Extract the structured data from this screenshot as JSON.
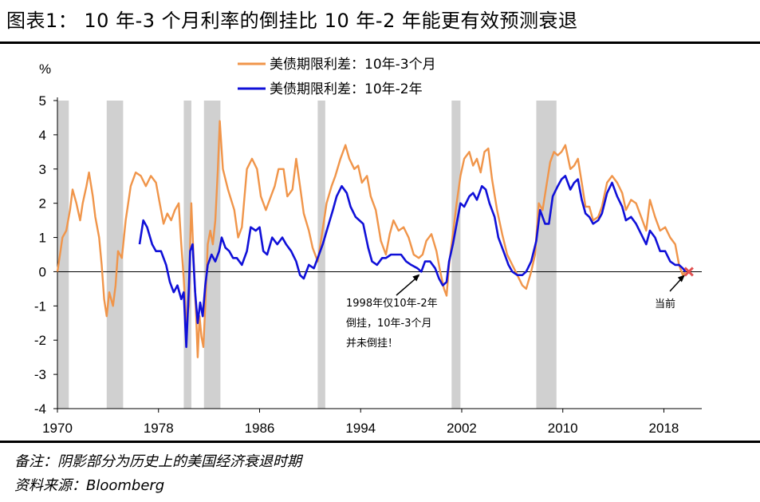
{
  "figure": {
    "title": "图表1： 10 年-3 个月利率的倒挂比 10 年-2 年能更有效预测衰退",
    "note": "备注：阴影部分为历史上的美国经济衰退时期",
    "source": "资料来源：Bloomberg"
  },
  "colors": {
    "series_10y3m": "#F0954A",
    "series_10y2y": "#1010D8",
    "recession": "#D0D0D0",
    "current_marker": "#E05050"
  },
  "chart_data": {
    "type": "line",
    "ylabel": "%",
    "ylim": [
      -4,
      5
    ],
    "yticks": [
      "5",
      "4",
      "3",
      "2",
      "1",
      "0",
      "-1",
      "-2",
      "-3",
      "-4"
    ],
    "xlim": [
      1970,
      2021
    ],
    "xticks": [
      "1970",
      "1978",
      "1986",
      "1994",
      "2002",
      "2010",
      "2018"
    ],
    "grid": false,
    "legend_position": "top-center",
    "recessions": [
      [
        1970.0,
        1970.9
      ],
      [
        1973.9,
        1975.2
      ],
      [
        1980.0,
        1980.6
      ],
      [
        1981.6,
        1982.9
      ],
      [
        1990.6,
        1991.2
      ],
      [
        2001.2,
        2001.9
      ],
      [
        2007.9,
        2009.5
      ]
    ],
    "series": [
      {
        "name": "美债期限利差：10年-3个月",
        "color": "#F0954A",
        "points": [
          [
            1970.0,
            0.0
          ],
          [
            1970.2,
            0.5
          ],
          [
            1970.4,
            1.0
          ],
          [
            1970.7,
            1.2
          ],
          [
            1971.0,
            1.8
          ],
          [
            1971.2,
            2.4
          ],
          [
            1971.5,
            2.0
          ],
          [
            1971.8,
            1.5
          ],
          [
            1972.0,
            2.0
          ],
          [
            1972.3,
            2.5
          ],
          [
            1972.5,
            2.9
          ],
          [
            1972.8,
            2.2
          ],
          [
            1973.0,
            1.6
          ],
          [
            1973.3,
            1.0
          ],
          [
            1973.5,
            0.2
          ],
          [
            1973.7,
            -0.8
          ],
          [
            1973.9,
            -1.3
          ],
          [
            1974.1,
            -0.6
          ],
          [
            1974.4,
            -1.0
          ],
          [
            1974.6,
            -0.4
          ],
          [
            1974.8,
            0.6
          ],
          [
            1975.1,
            0.4
          ],
          [
            1975.4,
            1.5
          ],
          [
            1975.8,
            2.5
          ],
          [
            1976.2,
            2.9
          ],
          [
            1976.6,
            2.8
          ],
          [
            1977.0,
            2.5
          ],
          [
            1977.4,
            2.8
          ],
          [
            1977.8,
            2.6
          ],
          [
            1978.1,
            2.0
          ],
          [
            1978.4,
            1.4
          ],
          [
            1978.7,
            1.7
          ],
          [
            1979.0,
            1.5
          ],
          [
            1979.3,
            1.8
          ],
          [
            1979.6,
            2.0
          ],
          [
            1979.8,
            0.8
          ],
          [
            1980.0,
            -0.2
          ],
          [
            1980.2,
            -1.5
          ],
          [
            1980.4,
            -1.0
          ],
          [
            1980.5,
            0.8
          ],
          [
            1980.6,
            2.0
          ],
          [
            1980.8,
            0.2
          ],
          [
            1981.0,
            -1.5
          ],
          [
            1981.1,
            -2.5
          ],
          [
            1981.25,
            -1.3
          ],
          [
            1981.4,
            -1.9
          ],
          [
            1981.55,
            -2.2
          ],
          [
            1981.7,
            -1.0
          ],
          [
            1981.9,
            0.8
          ],
          [
            1982.1,
            1.2
          ],
          [
            1982.3,
            0.8
          ],
          [
            1982.5,
            1.5
          ],
          [
            1982.7,
            3.0
          ],
          [
            1982.85,
            4.4
          ],
          [
            1983.1,
            3.0
          ],
          [
            1983.5,
            2.4
          ],
          [
            1984.0,
            1.8
          ],
          [
            1984.3,
            1.0
          ],
          [
            1984.6,
            1.3
          ],
          [
            1985.0,
            3.0
          ],
          [
            1985.4,
            3.3
          ],
          [
            1985.8,
            3.0
          ],
          [
            1986.1,
            2.2
          ],
          [
            1986.5,
            1.8
          ],
          [
            1986.9,
            2.2
          ],
          [
            1987.2,
            2.5
          ],
          [
            1987.5,
            3.0
          ],
          [
            1987.9,
            3.0
          ],
          [
            1988.2,
            2.2
          ],
          [
            1988.6,
            2.4
          ],
          [
            1988.9,
            3.3
          ],
          [
            1989.2,
            2.5
          ],
          [
            1989.5,
            1.7
          ],
          [
            1989.9,
            1.2
          ],
          [
            1990.2,
            0.7
          ],
          [
            1990.6,
            0.3
          ],
          [
            1990.9,
            1.0
          ],
          [
            1991.3,
            2.0
          ],
          [
            1991.7,
            2.5
          ],
          [
            1992.0,
            2.8
          ],
          [
            1992.4,
            3.3
          ],
          [
            1992.8,
            3.7
          ],
          [
            1993.1,
            3.3
          ],
          [
            1993.5,
            3.0
          ],
          [
            1993.8,
            3.1
          ],
          [
            1994.1,
            2.6
          ],
          [
            1994.5,
            2.8
          ],
          [
            1994.8,
            2.2
          ],
          [
            1995.2,
            1.8
          ],
          [
            1995.6,
            0.9
          ],
          [
            1996.0,
            0.5
          ],
          [
            1996.3,
            1.1
          ],
          [
            1996.6,
            1.5
          ],
          [
            1997.0,
            1.2
          ],
          [
            1997.4,
            1.3
          ],
          [
            1997.8,
            1.0
          ],
          [
            1998.2,
            0.5
          ],
          [
            1998.6,
            0.4
          ],
          [
            1998.9,
            0.5
          ],
          [
            1999.2,
            0.9
          ],
          [
            1999.6,
            1.1
          ],
          [
            2000.0,
            0.6
          ],
          [
            2000.3,
            0.0
          ],
          [
            2000.6,
            -0.5
          ],
          [
            2000.8,
            -0.7
          ],
          [
            2001.0,
            0.2
          ],
          [
            2001.3,
            1.1
          ],
          [
            2001.6,
            2.0
          ],
          [
            2001.9,
            2.8
          ],
          [
            2002.2,
            3.3
          ],
          [
            2002.6,
            3.5
          ],
          [
            2002.9,
            3.1
          ],
          [
            2003.2,
            3.3
          ],
          [
            2003.5,
            2.9
          ],
          [
            2003.8,
            3.5
          ],
          [
            2004.1,
            3.6
          ],
          [
            2004.4,
            2.7
          ],
          [
            2004.8,
            1.8
          ],
          [
            2005.2,
            1.1
          ],
          [
            2005.6,
            0.5
          ],
          [
            2006.0,
            0.2
          ],
          [
            2006.4,
            -0.1
          ],
          [
            2006.8,
            -0.4
          ],
          [
            2007.1,
            -0.5
          ],
          [
            2007.5,
            0.0
          ],
          [
            2007.8,
            0.5
          ],
          [
            2008.1,
            2.0
          ],
          [
            2008.4,
            1.8
          ],
          [
            2008.7,
            2.5
          ],
          [
            2009.0,
            3.2
          ],
          [
            2009.3,
            3.5
          ],
          [
            2009.6,
            3.4
          ],
          [
            2009.9,
            3.5
          ],
          [
            2010.2,
            3.7
          ],
          [
            2010.6,
            3.0
          ],
          [
            2010.9,
            3.1
          ],
          [
            2011.2,
            3.3
          ],
          [
            2011.5,
            2.6
          ],
          [
            2011.8,
            1.9
          ],
          [
            2012.1,
            1.9
          ],
          [
            2012.4,
            1.5
          ],
          [
            2012.8,
            1.6
          ],
          [
            2013.1,
            1.9
          ],
          [
            2013.5,
            2.6
          ],
          [
            2013.9,
            2.8
          ],
          [
            2014.3,
            2.6
          ],
          [
            2014.7,
            2.3
          ],
          [
            2015.0,
            1.8
          ],
          [
            2015.4,
            2.1
          ],
          [
            2015.8,
            2.0
          ],
          [
            2016.2,
            1.6
          ],
          [
            2016.6,
            1.2
          ],
          [
            2016.9,
            2.1
          ],
          [
            2017.3,
            1.6
          ],
          [
            2017.7,
            1.2
          ],
          [
            2018.1,
            1.3
          ],
          [
            2018.5,
            1.0
          ],
          [
            2018.9,
            0.8
          ],
          [
            2019.2,
            0.2
          ],
          [
            2019.5,
            -0.1
          ],
          [
            2019.7,
            0.0
          ]
        ]
      },
      {
        "name": "美债期限利差：10年-2年",
        "color": "#1010D8",
        "points": [
          [
            1976.5,
            0.8
          ],
          [
            1976.8,
            1.5
          ],
          [
            1977.1,
            1.3
          ],
          [
            1977.5,
            0.8
          ],
          [
            1977.8,
            0.6
          ],
          [
            1978.2,
            0.6
          ],
          [
            1978.6,
            0.2
          ],
          [
            1978.9,
            -0.3
          ],
          [
            1979.2,
            -0.6
          ],
          [
            1979.5,
            -0.4
          ],
          [
            1979.8,
            -0.8
          ],
          [
            1980.0,
            -0.6
          ],
          [
            1980.2,
            -2.2
          ],
          [
            1980.4,
            -0.5
          ],
          [
            1980.5,
            0.6
          ],
          [
            1980.7,
            0.8
          ],
          [
            1980.9,
            -0.6
          ],
          [
            1981.1,
            -1.5
          ],
          [
            1981.3,
            -0.9
          ],
          [
            1981.5,
            -1.3
          ],
          [
            1981.7,
            -0.4
          ],
          [
            1981.9,
            0.2
          ],
          [
            1982.2,
            0.5
          ],
          [
            1982.5,
            0.3
          ],
          [
            1982.8,
            0.6
          ],
          [
            1983.0,
            1.0
          ],
          [
            1983.3,
            0.7
          ],
          [
            1983.6,
            0.6
          ],
          [
            1983.9,
            0.4
          ],
          [
            1984.2,
            0.4
          ],
          [
            1984.6,
            0.2
          ],
          [
            1985.0,
            0.6
          ],
          [
            1985.3,
            1.3
          ],
          [
            1985.7,
            1.2
          ],
          [
            1986.0,
            1.3
          ],
          [
            1986.3,
            0.6
          ],
          [
            1986.6,
            0.5
          ],
          [
            1987.0,
            1.0
          ],
          [
            1987.4,
            0.8
          ],
          [
            1987.8,
            1.0
          ],
          [
            1988.1,
            0.8
          ],
          [
            1988.5,
            0.6
          ],
          [
            1988.9,
            0.3
          ],
          [
            1989.2,
            -0.1
          ],
          [
            1989.5,
            -0.2
          ],
          [
            1989.9,
            0.2
          ],
          [
            1990.3,
            0.1
          ],
          [
            1990.7,
            0.5
          ],
          [
            1991.0,
            0.8
          ],
          [
            1991.4,
            1.3
          ],
          [
            1991.8,
            1.8
          ],
          [
            1992.1,
            2.2
          ],
          [
            1992.5,
            2.5
          ],
          [
            1992.9,
            2.3
          ],
          [
            1993.2,
            1.9
          ],
          [
            1993.6,
            1.6
          ],
          [
            1993.9,
            1.5
          ],
          [
            1994.2,
            1.4
          ],
          [
            1994.6,
            0.7
          ],
          [
            1994.9,
            0.3
          ],
          [
            1995.3,
            0.2
          ],
          [
            1995.7,
            0.4
          ],
          [
            1996.0,
            0.4
          ],
          [
            1996.4,
            0.5
          ],
          [
            1996.8,
            0.5
          ],
          [
            1997.2,
            0.5
          ],
          [
            1997.6,
            0.3
          ],
          [
            1998.0,
            0.2
          ],
          [
            1998.5,
            0.1
          ],
          [
            1998.8,
            0.0
          ],
          [
            1999.1,
            0.3
          ],
          [
            1999.5,
            0.3
          ],
          [
            1999.9,
            0.1
          ],
          [
            2000.2,
            -0.2
          ],
          [
            2000.5,
            -0.4
          ],
          [
            2000.8,
            -0.3
          ],
          [
            2001.0,
            0.3
          ],
          [
            2001.3,
            0.8
          ],
          [
            2001.6,
            1.4
          ],
          [
            2001.9,
            2.0
          ],
          [
            2002.2,
            1.9
          ],
          [
            2002.6,
            2.2
          ],
          [
            2002.9,
            2.3
          ],
          [
            2003.2,
            2.1
          ],
          [
            2003.6,
            2.5
          ],
          [
            2003.9,
            2.4
          ],
          [
            2004.2,
            2.0
          ],
          [
            2004.6,
            1.6
          ],
          [
            2004.9,
            1.0
          ],
          [
            2005.3,
            0.6
          ],
          [
            2005.7,
            0.2
          ],
          [
            2006.0,
            0.0
          ],
          [
            2006.4,
            -0.1
          ],
          [
            2006.8,
            -0.1
          ],
          [
            2007.1,
            0.0
          ],
          [
            2007.5,
            0.3
          ],
          [
            2007.9,
            0.9
          ],
          [
            2008.2,
            1.8
          ],
          [
            2008.6,
            1.4
          ],
          [
            2008.9,
            1.4
          ],
          [
            2009.2,
            2.2
          ],
          [
            2009.6,
            2.5
          ],
          [
            2009.9,
            2.7
          ],
          [
            2010.2,
            2.8
          ],
          [
            2010.6,
            2.4
          ],
          [
            2010.9,
            2.6
          ],
          [
            2011.2,
            2.7
          ],
          [
            2011.5,
            2.1
          ],
          [
            2011.8,
            1.7
          ],
          [
            2012.1,
            1.6
          ],
          [
            2012.4,
            1.4
          ],
          [
            2012.8,
            1.5
          ],
          [
            2013.1,
            1.7
          ],
          [
            2013.5,
            2.3
          ],
          [
            2013.9,
            2.6
          ],
          [
            2014.3,
            2.2
          ],
          [
            2014.7,
            1.9
          ],
          [
            2015.0,
            1.5
          ],
          [
            2015.4,
            1.6
          ],
          [
            2015.8,
            1.4
          ],
          [
            2016.2,
            1.1
          ],
          [
            2016.6,
            0.8
          ],
          [
            2016.9,
            1.2
          ],
          [
            2017.3,
            1.0
          ],
          [
            2017.7,
            0.6
          ],
          [
            2018.1,
            0.6
          ],
          [
            2018.5,
            0.3
          ],
          [
            2018.9,
            0.2
          ],
          [
            2019.2,
            0.2
          ],
          [
            2019.5,
            0.1
          ],
          [
            2019.7,
            0.0
          ]
        ]
      }
    ],
    "annotations": [
      {
        "lines": [
          "1998年仅10年-2年",
          "倒挂，10年-3个月",
          "并未倒挂！"
        ],
        "target": [
          1998.8,
          0.0
        ]
      },
      {
        "lines": [
          "当前"
        ],
        "target": [
          2019.6,
          0.0
        ]
      }
    ]
  }
}
